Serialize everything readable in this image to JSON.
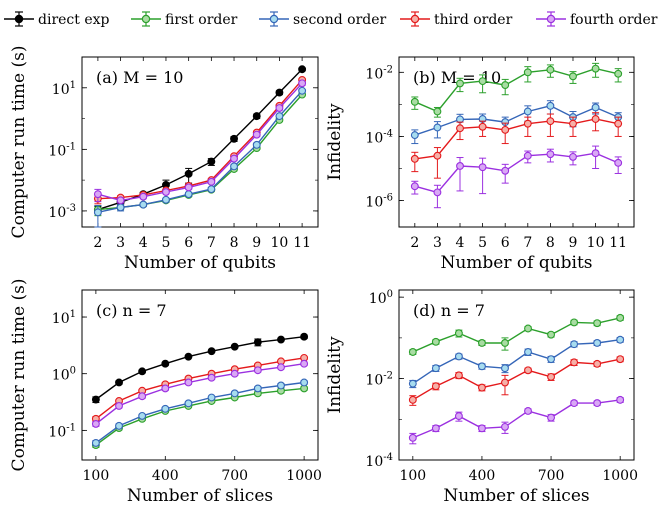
{
  "legend": {
    "items": [
      {
        "label": "direct exp",
        "color": "#000000",
        "fill": "#000000"
      },
      {
        "label": "first order",
        "color": "#2ca02c",
        "fill": "#a9dca3"
      },
      {
        "label": "second order",
        "color": "#3566b8",
        "fill": "#a7dcef"
      },
      {
        "label": "third order",
        "color": "#e41a1c",
        "fill": "#f5b0a8"
      },
      {
        "label": "fourth order",
        "color": "#9b30e0",
        "fill": "#d9a8f5"
      }
    ]
  },
  "chart_data": [
    {
      "type": "line",
      "panel_label": "(a) M = 10",
      "xlabel": "Number of qubits",
      "ylabel": "Computer run time (s)",
      "yscale": "log",
      "xlim": [
        1.3,
        11.7
      ],
      "ylim": [
        0.0003,
        100
      ],
      "x_ticks": [
        2,
        3,
        4,
        5,
        6,
        7,
        8,
        9,
        10,
        11
      ],
      "y_ticks": [
        {
          "v": 0.001,
          "label": "10",
          "exp": "-3"
        },
        {
          "v": 0.1,
          "label": "10",
          "exp": "-1"
        },
        {
          "v": 10,
          "label": "10",
          "exp": "1"
        }
      ],
      "x": [
        2,
        3,
        4,
        5,
        6,
        7,
        8,
        9,
        10,
        11
      ],
      "series": [
        {
          "name": "direct exp",
          "values": [
            0.0011,
            0.0019,
            0.0035,
            0.007,
            0.016,
            0.04,
            0.22,
            1.2,
            7,
            40
          ],
          "err": [
            0.0003,
            0.0003,
            0.0005,
            0.003,
            0.008,
            0.01,
            0.04,
            0.2,
            1,
            4
          ]
        },
        {
          "name": "first order",
          "values": [
            0.0011,
            0.0013,
            0.0016,
            0.0022,
            0.0033,
            0.0049,
            0.023,
            0.11,
            0.9,
            6
          ],
          "err": [
            0.0004,
            0.0002,
            0.0002,
            0.0003,
            0.0004,
            0.0006,
            0.003,
            0.01,
            0.1,
            0.6
          ]
        },
        {
          "name": "second order",
          "values": [
            0.0009,
            0.0013,
            0.0016,
            0.0023,
            0.0035,
            0.0051,
            0.028,
            0.14,
            1.2,
            8
          ],
          "err": [
            0.0006,
            0.0003,
            0.0002,
            0.0003,
            0.0004,
            0.0006,
            0.004,
            0.02,
            0.1,
            0.8
          ]
        },
        {
          "name": "third order",
          "values": [
            0.0025,
            0.0027,
            0.0033,
            0.0046,
            0.0065,
            0.01,
            0.06,
            0.35,
            2.6,
            18
          ],
          "err": [
            0.0008,
            0.0004,
            0.0004,
            0.0005,
            0.0008,
            0.001,
            0.008,
            0.04,
            0.3,
            2
          ]
        },
        {
          "name": "fourth order",
          "values": [
            0.0035,
            0.0022,
            0.0029,
            0.0041,
            0.0058,
            0.0088,
            0.05,
            0.3,
            2.2,
            14
          ],
          "err": [
            0.0015,
            0.0004,
            0.0004,
            0.0005,
            0.0007,
            0.001,
            0.007,
            0.04,
            0.3,
            2
          ]
        }
      ]
    },
    {
      "type": "line",
      "panel_label": "(b) M = 10",
      "xlabel": "Number of qubits",
      "ylabel": "Infidelity",
      "yscale": "log",
      "xlim": [
        1.3,
        11.7
      ],
      "ylim": [
        1.5e-07,
        0.03
      ],
      "x_ticks": [
        2,
        3,
        4,
        5,
        6,
        7,
        8,
        9,
        10,
        11
      ],
      "y_ticks": [
        {
          "v": 1e-06,
          "label": "10",
          "exp": "-6"
        },
        {
          "v": 0.0001,
          "label": "10",
          "exp": "-4"
        },
        {
          "v": 0.01,
          "label": "10",
          "exp": "-2"
        }
      ],
      "x": [
        2,
        3,
        4,
        5,
        6,
        7,
        8,
        9,
        10,
        11
      ],
      "series": [
        {
          "name": "first order",
          "values": [
            0.0012,
            0.0006,
            0.0045,
            0.0053,
            0.004,
            0.01,
            0.012,
            0.0075,
            0.013,
            0.009
          ],
          "err": [
            0.0005,
            0.0002,
            0.002,
            0.003,
            0.002,
            0.005,
            0.005,
            0.003,
            0.006,
            0.004
          ]
        },
        {
          "name": "second order",
          "values": [
            0.00011,
            0.00019,
            0.00034,
            0.00035,
            0.00028,
            0.0006,
            0.0009,
            0.0004,
            0.0008,
            0.0004
          ],
          "err": [
            5e-05,
            0.0001,
            0.00015,
            0.00015,
            0.00012,
            0.0003,
            0.0004,
            0.0002,
            0.0003,
            0.00015
          ]
        },
        {
          "name": "third order",
          "values": [
            2e-05,
            2.5e-05,
            0.00018,
            0.0002,
            0.00016,
            0.00025,
            0.0003,
            0.00025,
            0.00035,
            0.00025
          ],
          "err": [
            1.2e-05,
            2e-05,
            0.0001,
            0.0001,
            0.0001,
            0.00015,
            0.0002,
            0.00015,
            0.0002,
            0.00015
          ]
        },
        {
          "name": "fourth order",
          "values": [
            2.8e-06,
            1.8e-06,
            1.2e-05,
            1.1e-05,
            8.5e-06,
            2.5e-05,
            2.8e-05,
            2.3e-05,
            3e-05,
            1.5e-05
          ],
          "err": [
            1.2e-06,
            1.2e-06,
            1e-05,
            1e-05,
            5e-06,
            1e-05,
            1.2e-05,
            1e-05,
            2e-05,
            8e-06
          ]
        }
      ]
    },
    {
      "type": "line",
      "panel_label": "(c) n = 7",
      "xlabel": "Number of slices",
      "ylabel": "Computer run time (s)",
      "yscale": "log",
      "xlim": [
        40,
        1060
      ],
      "ylim": [
        0.03,
        30
      ],
      "x_ticks": [
        100,
        400,
        700,
        1000
      ],
      "y_ticks": [
        {
          "v": 0.1,
          "label": "10",
          "exp": "-1"
        },
        {
          "v": 1,
          "label": "10",
          "exp": "0"
        },
        {
          "v": 10,
          "label": "10",
          "exp": "1"
        }
      ],
      "x": [
        100,
        200,
        300,
        400,
        500,
        600,
        700,
        800,
        900,
        1000
      ],
      "series": [
        {
          "name": "direct exp",
          "values": [
            0.35,
            0.7,
            1.1,
            1.5,
            2,
            2.5,
            3,
            3.6,
            4,
            4.5
          ],
          "err": [
            0.04,
            0.05,
            0.06,
            0.08,
            0.1,
            0.1,
            0.15,
            0.5,
            0.2,
            0.3
          ]
        },
        {
          "name": "first order",
          "values": [
            0.055,
            0.11,
            0.16,
            0.22,
            0.27,
            0.33,
            0.38,
            0.45,
            0.5,
            0.55
          ],
          "err": [
            0.005,
            0.008,
            0.01,
            0.01,
            0.015,
            0.02,
            0.02,
            0.03,
            0.04,
            0.04
          ]
        },
        {
          "name": "second order",
          "values": [
            0.06,
            0.12,
            0.18,
            0.24,
            0.3,
            0.38,
            0.45,
            0.55,
            0.62,
            0.7
          ],
          "err": [
            0.006,
            0.01,
            0.012,
            0.015,
            0.02,
            0.02,
            0.03,
            0.04,
            0.05,
            0.05
          ]
        },
        {
          "name": "third order",
          "values": [
            0.16,
            0.33,
            0.5,
            0.65,
            0.82,
            1.0,
            1.2,
            1.4,
            1.65,
            1.9
          ],
          "err": [
            0.015,
            0.02,
            0.03,
            0.04,
            0.05,
            0.06,
            0.07,
            0.08,
            0.1,
            0.1
          ]
        },
        {
          "name": "fourth order",
          "values": [
            0.13,
            0.27,
            0.4,
            0.55,
            0.7,
            0.85,
            1.0,
            1.15,
            1.3,
            1.5
          ],
          "err": [
            0.012,
            0.02,
            0.03,
            0.04,
            0.05,
            0.05,
            0.06,
            0.07,
            0.08,
            0.09
          ]
        }
      ]
    },
    {
      "type": "line",
      "panel_label": "(d) n = 7",
      "xlabel": "Number of slices",
      "ylabel": "Infidelity",
      "yscale": "log",
      "xlim": [
        40,
        1060
      ],
      "ylim": [
        0.0001,
        1.5
      ],
      "x_ticks": [
        100,
        400,
        700,
        1000
      ],
      "y_ticks": [
        {
          "v": 0.0001,
          "label": "10",
          "exp": "-4"
        },
        {
          "v": 0.01,
          "label": "10",
          "exp": "-2"
        },
        {
          "v": 1,
          "label": "10",
          "exp": "0"
        }
      ],
      "x": [
        100,
        200,
        300,
        400,
        500,
        600,
        700,
        800,
        900,
        1000
      ],
      "series": [
        {
          "name": "first order",
          "values": [
            0.045,
            0.08,
            0.13,
            0.075,
            0.075,
            0.17,
            0.12,
            0.24,
            0.23,
            0.31
          ],
          "err": [
            0.006,
            0.01,
            0.025,
            0.01,
            0.025,
            0.02,
            0.015,
            0.03,
            0.03,
            0.04
          ]
        },
        {
          "name": "second order",
          "values": [
            0.0075,
            0.018,
            0.035,
            0.02,
            0.018,
            0.045,
            0.03,
            0.07,
            0.075,
            0.09
          ],
          "err": [
            0.0015,
            0.003,
            0.005,
            0.003,
            0.004,
            0.008,
            0.005,
            0.01,
            0.01,
            0.012
          ]
        },
        {
          "name": "third order",
          "values": [
            0.003,
            0.0065,
            0.012,
            0.006,
            0.008,
            0.016,
            0.011,
            0.025,
            0.023,
            0.03
          ],
          "err": [
            0.0008,
            0.0012,
            0.002,
            0.001,
            0.004,
            0.002,
            0.002,
            0.004,
            0.003,
            0.004
          ]
        },
        {
          "name": "fourth order",
          "values": [
            0.00035,
            0.0006,
            0.0012,
            0.0006,
            0.00065,
            0.0016,
            0.0011,
            0.0025,
            0.0025,
            0.003
          ],
          "err": [
            0.0001,
            0.0001,
            0.0003,
            0.0001,
            0.0002,
            0.0002,
            0.0002,
            0.0003,
            0.0003,
            0.0004
          ]
        }
      ]
    }
  ]
}
